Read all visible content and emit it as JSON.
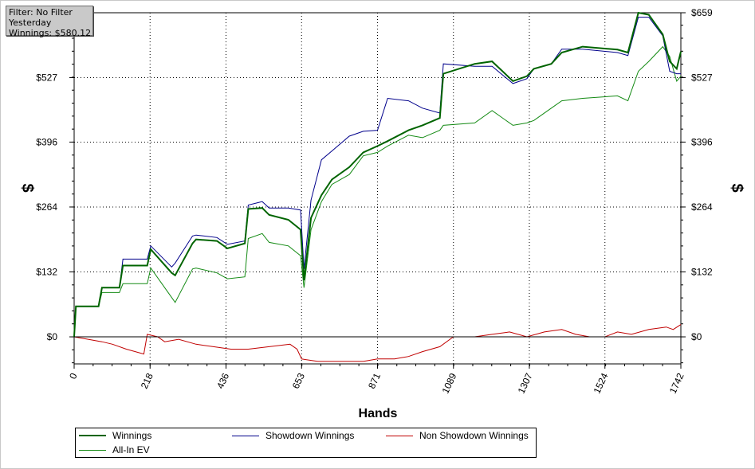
{
  "filter_box": {
    "line1": "Filter: No Filter",
    "line2": "Yesterday",
    "line3": "Winnings: $580.12"
  },
  "chart_data": {
    "type": "line",
    "xlabel": "Hands",
    "ylabel_left": "$",
    "ylabel_right": "$",
    "xlim": [
      0,
      1742
    ],
    "ylim": [
      -55,
      659
    ],
    "x_ticks": [
      0,
      218,
      436,
      653,
      871,
      1089,
      1307,
      1524,
      1742
    ],
    "x_tick_labels": [
      "0",
      "218",
      "436",
      "653",
      "871",
      "1089",
      "1307",
      "1524",
      "1742"
    ],
    "y_ticks": [
      0,
      132,
      264,
      396,
      527,
      659
    ],
    "y_tick_labels": [
      "$0",
      "$132",
      "$264",
      "$396",
      "$527",
      "$659"
    ],
    "grid": true,
    "legend_position": "bottom",
    "series": [
      {
        "name": "Winnings",
        "color": "#006400",
        "x": [
          0,
          5,
          70,
          80,
          130,
          140,
          210,
          220,
          280,
          290,
          340,
          350,
          410,
          440,
          490,
          500,
          540,
          560,
          615,
          650,
          660,
          680,
          710,
          740,
          790,
          830,
          871,
          900,
          960,
          1000,
          1050,
          1060,
          1150,
          1200,
          1260,
          1300,
          1320,
          1370,
          1400,
          1460,
          1560,
          1590,
          1620,
          1650,
          1690,
          1710,
          1730,
          1742
        ],
        "y": [
          0,
          62,
          62,
          100,
          100,
          145,
          145,
          178,
          130,
          125,
          190,
          198,
          195,
          180,
          190,
          260,
          262,
          248,
          238,
          218,
          115,
          242,
          288,
          320,
          345,
          375,
          388,
          398,
          420,
          430,
          445,
          535,
          555,
          560,
          520,
          530,
          545,
          555,
          578,
          590,
          584,
          578,
          659,
          655,
          615,
          560,
          545,
          580.12
        ]
      },
      {
        "name": "Showdown Winnings",
        "color": "#00008b",
        "x": [
          0,
          5,
          70,
          80,
          130,
          140,
          210,
          220,
          280,
          290,
          340,
          350,
          410,
          440,
          490,
          500,
          540,
          560,
          615,
          650,
          660,
          680,
          710,
          740,
          790,
          830,
          871,
          900,
          960,
          1000,
          1050,
          1060,
          1150,
          1200,
          1260,
          1300,
          1320,
          1370,
          1400,
          1460,
          1560,
          1590,
          1620,
          1650,
          1690,
          1710,
          1730,
          1742
        ],
        "y": [
          0,
          62,
          62,
          100,
          100,
          158,
          158,
          185,
          142,
          150,
          205,
          207,
          202,
          188,
          195,
          268,
          275,
          262,
          262,
          258,
          138,
          278,
          360,
          378,
          408,
          418,
          420,
          485,
          480,
          465,
          455,
          555,
          550,
          550,
          515,
          525,
          545,
          555,
          585,
          585,
          578,
          572,
          650,
          650,
          612,
          540,
          535,
          535
        ]
      },
      {
        "name": "Non Showdown Winnings",
        "color": "#c00000",
        "x": [
          0,
          40,
          80,
          110,
          150,
          200,
          210,
          240,
          260,
          300,
          350,
          400,
          450,
          500,
          560,
          620,
          640,
          653,
          700,
          760,
          830,
          871,
          920,
          960,
          1000,
          1050,
          1089,
          1150,
          1200,
          1250,
          1300,
          1350,
          1400,
          1440,
          1480,
          1524,
          1560,
          1600,
          1650,
          1700,
          1720,
          1742
        ],
        "y": [
          0,
          -5,
          -10,
          -15,
          -25,
          -35,
          5,
          0,
          -10,
          -5,
          -15,
          -20,
          -25,
          -25,
          -20,
          -15,
          -25,
          -45,
          -50,
          -50,
          -50,
          -45,
          -45,
          -40,
          -30,
          -20,
          0,
          0,
          5,
          10,
          0,
          10,
          15,
          5,
          0,
          0,
          10,
          5,
          15,
          20,
          15,
          25
        ]
      },
      {
        "name": "All-In EV",
        "color": "#138a13",
        "x": [
          0,
          5,
          70,
          80,
          130,
          140,
          210,
          220,
          280,
          290,
          340,
          350,
          410,
          440,
          490,
          500,
          540,
          560,
          615,
          650,
          660,
          680,
          710,
          740,
          790,
          830,
          871,
          900,
          960,
          1000,
          1050,
          1060,
          1150,
          1200,
          1260,
          1300,
          1320,
          1370,
          1400,
          1460,
          1560,
          1590,
          1620,
          1650,
          1690,
          1710,
          1730,
          1742
        ],
        "y": [
          0,
          62,
          62,
          90,
          90,
          108,
          108,
          140,
          80,
          70,
          138,
          140,
          130,
          118,
          122,
          200,
          210,
          192,
          185,
          165,
          100,
          218,
          275,
          310,
          330,
          368,
          375,
          388,
          410,
          405,
          420,
          430,
          435,
          460,
          430,
          435,
          440,
          465,
          480,
          485,
          490,
          480,
          540,
          560,
          590,
          570,
          520,
          530
        ]
      }
    ]
  }
}
